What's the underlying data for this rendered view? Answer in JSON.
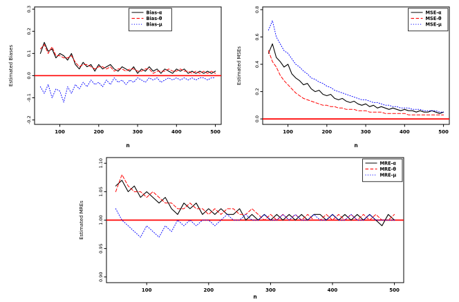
{
  "figure": {
    "background": "#ffffff"
  },
  "chart_data": [
    {
      "id": "bias",
      "type": "line",
      "title": "",
      "xlabel": "n",
      "ylabel": "Estimated Biases",
      "xlim": [
        35,
        515
      ],
      "ylim": [
        -0.22,
        0.31
      ],
      "grid": false,
      "xticks": {
        "values": [
          100,
          200,
          300,
          400,
          500
        ],
        "labels": [
          "100",
          "200",
          "300",
          "400",
          "500"
        ]
      },
      "yticks": {
        "values": [
          -0.2,
          -0.1,
          0.0,
          0.1,
          0.2,
          0.3
        ],
        "labels": [
          "-0.2",
          "-0.1",
          "0.0",
          "0.1",
          "0.2",
          "0.3"
        ]
      },
      "ref_line": {
        "y": 0.0,
        "color": "#ff0000"
      },
      "legend": {
        "position": "top-center",
        "entries": [
          "Bias-α",
          "Bias-θ",
          "Bias-μ"
        ]
      },
      "x": [
        50,
        60,
        70,
        80,
        90,
        100,
        110,
        120,
        130,
        140,
        150,
        160,
        170,
        180,
        190,
        200,
        210,
        220,
        230,
        240,
        250,
        260,
        270,
        280,
        290,
        300,
        310,
        320,
        330,
        340,
        350,
        360,
        370,
        380,
        390,
        400,
        410,
        420,
        430,
        440,
        450,
        460,
        470,
        480,
        490,
        500
      ],
      "series": [
        {
          "name": "Bias-α",
          "color": "#000000",
          "style": "solid",
          "values": [
            0.1,
            0.15,
            0.11,
            0.12,
            0.08,
            0.1,
            0.09,
            0.07,
            0.1,
            0.05,
            0.03,
            0.06,
            0.04,
            0.05,
            0.02,
            0.05,
            0.03,
            0.04,
            0.05,
            0.03,
            0.02,
            0.04,
            0.03,
            0.02,
            0.04,
            0.01,
            0.03,
            0.02,
            0.04,
            0.02,
            0.03,
            0.01,
            0.03,
            0.02,
            0.01,
            0.03,
            0.02,
            0.03,
            0.01,
            0.02,
            0.01,
            0.02,
            0.01,
            0.02,
            0.01,
            0.02
          ]
        },
        {
          "name": "Bias-θ",
          "color": "#ff0000",
          "style": "dashed",
          "values": [
            0.12,
            0.14,
            0.1,
            0.13,
            0.09,
            0.09,
            0.08,
            0.08,
            0.09,
            0.06,
            0.04,
            0.05,
            0.05,
            0.04,
            0.03,
            0.04,
            0.04,
            0.03,
            0.04,
            0.02,
            0.03,
            0.03,
            0.02,
            0.03,
            0.03,
            0.02,
            0.02,
            0.03,
            0.03,
            0.01,
            0.02,
            0.02,
            0.02,
            0.03,
            0.02,
            0.02,
            0.03,
            0.02,
            0.02,
            0.01,
            0.02,
            0.01,
            0.02,
            0.01,
            0.02,
            0.01
          ]
        },
        {
          "name": "Bias-μ",
          "color": "#0000ff",
          "style": "dotted",
          "values": [
            -0.05,
            -0.08,
            -0.04,
            -0.1,
            -0.06,
            -0.07,
            -0.12,
            -0.05,
            -0.08,
            -0.04,
            -0.06,
            -0.03,
            -0.05,
            -0.02,
            -0.04,
            -0.03,
            -0.05,
            -0.02,
            -0.04,
            -0.01,
            -0.03,
            -0.02,
            -0.04,
            -0.02,
            -0.03,
            -0.01,
            -0.02,
            -0.03,
            -0.01,
            -0.02,
            -0.01,
            -0.03,
            -0.02,
            -0.01,
            -0.02,
            -0.01,
            -0.02,
            -0.01,
            -0.02,
            -0.01,
            -0.02,
            -0.01,
            -0.01,
            -0.02,
            -0.01,
            -0.01
          ]
        }
      ]
    },
    {
      "id": "mse",
      "type": "line",
      "title": "",
      "xlabel": "n",
      "ylabel": "Estimated MSEs",
      "xlim": [
        35,
        515
      ],
      "ylim": [
        -0.04,
        0.82
      ],
      "grid": false,
      "xticks": {
        "values": [
          100,
          200,
          300,
          400,
          500
        ],
        "labels": [
          "100",
          "200",
          "300",
          "400",
          "500"
        ]
      },
      "yticks": {
        "values": [
          0.0,
          0.2,
          0.4,
          0.6,
          0.8
        ],
        "labels": [
          "0.0",
          "0.2",
          "0.4",
          "0.6",
          "0.8"
        ]
      },
      "ref_line": {
        "y": 0.0,
        "color": "#ff0000"
      },
      "legend": {
        "position": "top-right",
        "entries": [
          "MSE-α",
          "MSE-θ",
          "MSE-μ"
        ]
      },
      "x": [
        50,
        60,
        70,
        80,
        90,
        100,
        110,
        120,
        130,
        140,
        150,
        160,
        170,
        180,
        190,
        200,
        210,
        220,
        230,
        240,
        250,
        260,
        270,
        280,
        290,
        300,
        310,
        320,
        330,
        340,
        350,
        360,
        370,
        380,
        390,
        400,
        410,
        420,
        430,
        440,
        450,
        460,
        470,
        480,
        490,
        500
      ],
      "series": [
        {
          "name": "MSE-α",
          "color": "#000000",
          "style": "solid",
          "values": [
            0.48,
            0.55,
            0.45,
            0.42,
            0.38,
            0.4,
            0.33,
            0.3,
            0.28,
            0.25,
            0.26,
            0.22,
            0.2,
            0.21,
            0.18,
            0.17,
            0.18,
            0.15,
            0.14,
            0.15,
            0.13,
            0.12,
            0.13,
            0.11,
            0.1,
            0.11,
            0.09,
            0.1,
            0.08,
            0.09,
            0.08,
            0.07,
            0.08,
            0.07,
            0.06,
            0.07,
            0.06,
            0.06,
            0.05,
            0.06,
            0.05,
            0.05,
            0.06,
            0.05,
            0.04,
            0.05
          ]
        },
        {
          "name": "MSE-θ",
          "color": "#ff0000",
          "style": "dashed",
          "values": [
            0.5,
            0.42,
            0.38,
            0.32,
            0.28,
            0.25,
            0.22,
            0.19,
            0.17,
            0.15,
            0.14,
            0.13,
            0.12,
            0.11,
            0.1,
            0.1,
            0.09,
            0.09,
            0.08,
            0.08,
            0.07,
            0.07,
            0.07,
            0.06,
            0.06,
            0.06,
            0.05,
            0.05,
            0.05,
            0.05,
            0.04,
            0.04,
            0.04,
            0.04,
            0.04,
            0.04,
            0.03,
            0.03,
            0.03,
            0.03,
            0.03,
            0.03,
            0.03,
            0.03,
            0.03,
            0.03
          ]
        },
        {
          "name": "MSE-μ",
          "color": "#0000ff",
          "style": "dotted",
          "values": [
            0.65,
            0.72,
            0.6,
            0.55,
            0.5,
            0.48,
            0.44,
            0.4,
            0.38,
            0.35,
            0.33,
            0.3,
            0.29,
            0.27,
            0.26,
            0.24,
            0.23,
            0.21,
            0.2,
            0.19,
            0.18,
            0.17,
            0.16,
            0.15,
            0.14,
            0.14,
            0.13,
            0.12,
            0.12,
            0.11,
            0.1,
            0.1,
            0.09,
            0.09,
            0.08,
            0.08,
            0.08,
            0.07,
            0.07,
            0.07,
            0.06,
            0.06,
            0.06,
            0.06,
            0.05,
            0.05
          ]
        }
      ]
    },
    {
      "id": "mre",
      "type": "line",
      "title": "",
      "xlabel": "n",
      "ylabel": "Estimated MREs",
      "xlim": [
        35,
        515
      ],
      "ylim": [
        0.89,
        1.11
      ],
      "grid": false,
      "xticks": {
        "values": [
          100,
          200,
          300,
          400,
          500
        ],
        "labels": [
          "100",
          "200",
          "300",
          "400",
          "500"
        ]
      },
      "yticks": {
        "values": [
          0.9,
          0.95,
          1.0,
          1.05,
          1.1
        ],
        "labels": [
          "0.90",
          "0.95",
          "1.00",
          "1.05",
          "1.10"
        ]
      },
      "ref_line": {
        "y": 1.0,
        "color": "#ff0000"
      },
      "legend": {
        "position": "top-right",
        "entries": [
          "MRE-α",
          "MRE-θ",
          "MRE-μ"
        ]
      },
      "x": [
        50,
        60,
        70,
        80,
        90,
        100,
        110,
        120,
        130,
        140,
        150,
        160,
        170,
        180,
        190,
        200,
        210,
        220,
        230,
        240,
        250,
        260,
        270,
        280,
        290,
        300,
        310,
        320,
        330,
        340,
        350,
        360,
        370,
        380,
        390,
        400,
        410,
        420,
        430,
        440,
        450,
        460,
        470,
        480,
        490,
        500
      ],
      "series": [
        {
          "name": "MRE-α",
          "color": "#000000",
          "style": "solid",
          "values": [
            1.06,
            1.07,
            1.05,
            1.06,
            1.04,
            1.05,
            1.04,
            1.03,
            1.04,
            1.02,
            1.01,
            1.03,
            1.02,
            1.03,
            1.01,
            1.02,
            1.01,
            1.02,
            1.01,
            1.01,
            1.02,
            1.0,
            1.01,
            1.0,
            1.01,
            1.0,
            1.01,
            1.0,
            1.01,
            1.0,
            1.01,
            1.0,
            1.01,
            1.01,
            1.0,
            1.01,
            1.0,
            1.01,
            1.0,
            1.01,
            1.0,
            1.01,
            1.0,
            0.99,
            1.01,
            1.0
          ]
        },
        {
          "name": "MRE-θ",
          "color": "#ff0000",
          "style": "dashed",
          "values": [
            1.05,
            1.08,
            1.06,
            1.05,
            1.05,
            1.04,
            1.05,
            1.04,
            1.03,
            1.03,
            1.02,
            1.02,
            1.03,
            1.02,
            1.02,
            1.01,
            1.02,
            1.01,
            1.02,
            1.02,
            1.01,
            1.01,
            1.02,
            1.01,
            1.0,
            1.01,
            1.0,
            1.01,
            1.0,
            1.01,
            1.0,
            1.01,
            1.0,
            1.0,
            1.01,
            1.0,
            1.01,
            1.0,
            1.01,
            1.0,
            1.01,
            1.0,
            1.01,
            1.0,
            1.0,
            1.01
          ]
        },
        {
          "name": "MRE-μ",
          "color": "#0000ff",
          "style": "dotted",
          "values": [
            1.02,
            1.0,
            0.99,
            0.98,
            0.97,
            0.99,
            0.98,
            0.97,
            0.99,
            0.98,
            1.0,
            0.99,
            1.0,
            0.99,
            1.0,
            1.0,
            0.99,
            1.0,
            1.01,
            1.0,
            1.0,
            1.01,
            1.0,
            1.0,
            1.01,
            1.0,
            1.0,
            1.01,
            1.0,
            1.01,
            1.0,
            1.0,
            1.01,
            1.0,
            1.0,
            1.01,
            1.0,
            1.0,
            1.01,
            1.0,
            1.0,
            1.01,
            1.0,
            1.0,
            1.0,
            1.0
          ]
        }
      ]
    }
  ]
}
